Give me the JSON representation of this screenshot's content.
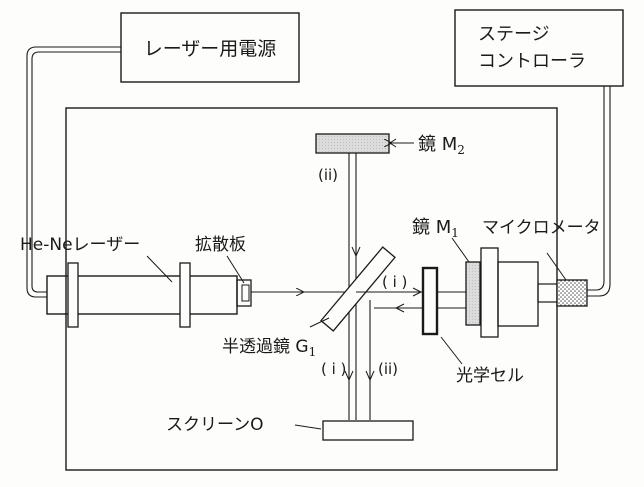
{
  "labels": {
    "laser_power_supply": "レーザー用電源",
    "stage_controller_line1": "ステージ",
    "stage_controller_line2": "コントローラ",
    "mirror_m2": "鏡 M",
    "mirror_m2_sub": "2",
    "mirror_m1": "鏡 M",
    "mirror_m1_sub": "1",
    "micrometer": "マイクロメータ",
    "laser": "He-Neレーザー",
    "diffuser": "拡散板",
    "half_mirror": "半透過鏡 G",
    "half_mirror_sub": "1",
    "optical_cell": "光学セル",
    "screen": "スクリーンO",
    "path_i": "( i )",
    "path_ii": "(ii)"
  },
  "colors": {
    "line": "#1a1a1a",
    "mirror_fill": "#d9d9d9",
    "dotted_fill": "#c8c8c8",
    "background": "#fdfdfb"
  }
}
